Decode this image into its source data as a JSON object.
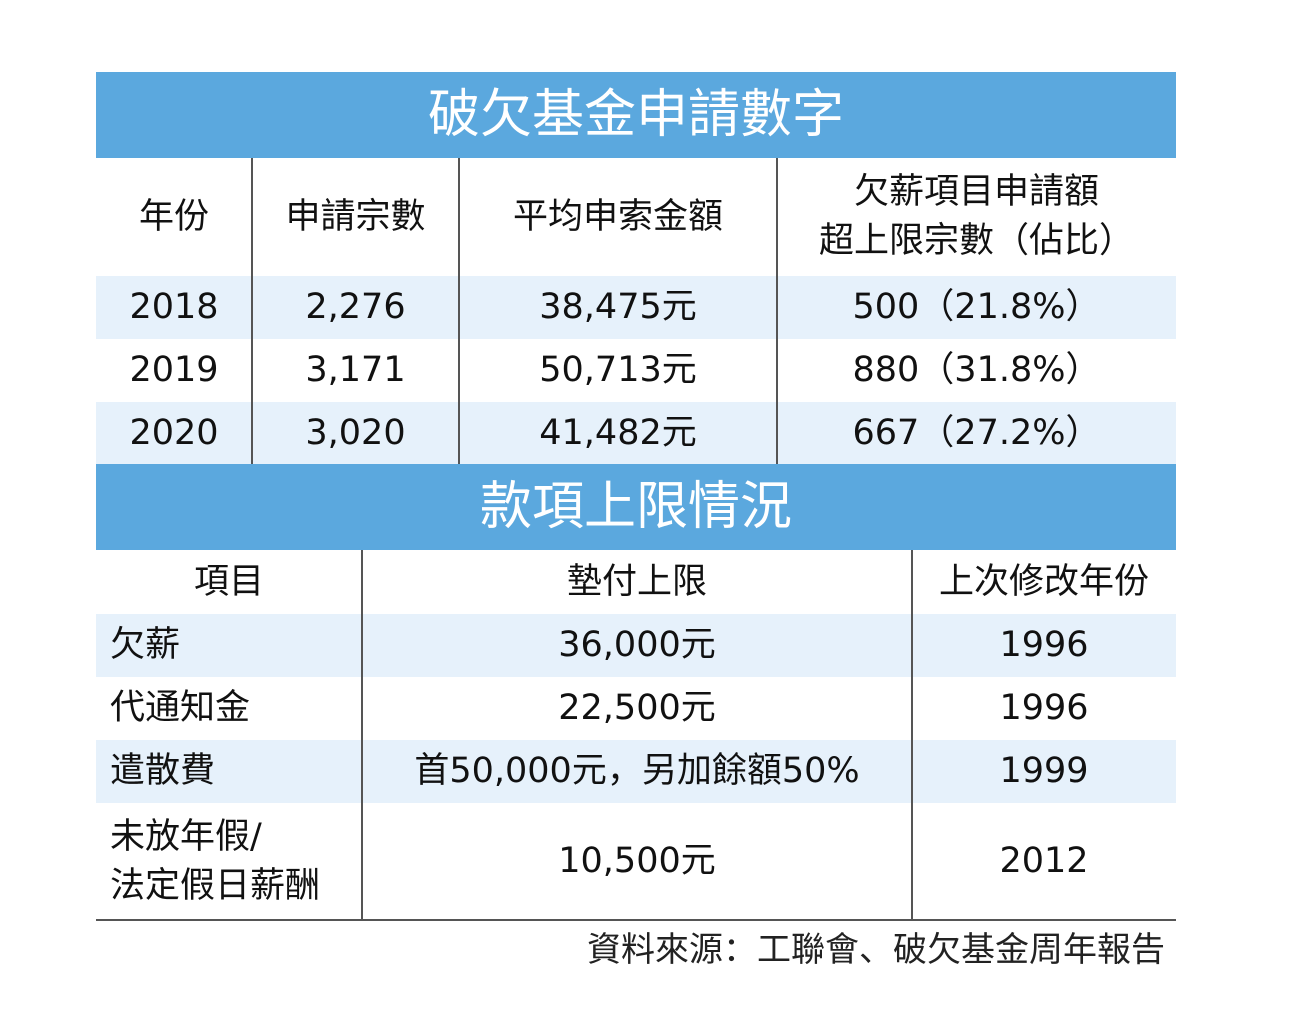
{
  "tables": [
    {
      "title": "破欠基金申請數字",
      "header": [
        "年份",
        "申請宗數",
        "平均申索金額",
        [
          "欠薪項目申請額",
          "超上限宗數（佔比）"
        ]
      ],
      "rows": [
        [
          "2018",
          "2,276",
          "38,475元",
          "500（21.8%）"
        ],
        [
          "2019",
          "3,171",
          "50,713元",
          "880（31.8%）"
        ],
        [
          "2020",
          "3,020",
          "41,482元",
          "667（27.2%）"
        ]
      ]
    },
    {
      "title": "款項上限情況",
      "header": [
        "項目",
        "墊付上限",
        "上次修改年份"
      ],
      "rows": [
        [
          "欠薪",
          "36,000元",
          "1996"
        ],
        [
          "代通知金",
          "22,500元",
          "1996"
        ],
        [
          "遣散費",
          "首50,000元，另加餘額50%",
          "1999"
        ],
        [
          [
            "未放年假/",
            "法定假日薪酬"
          ],
          "10,500元",
          "2012"
        ]
      ]
    }
  ],
  "source": "資料來源：工聯會、破欠基金周年報告"
}
